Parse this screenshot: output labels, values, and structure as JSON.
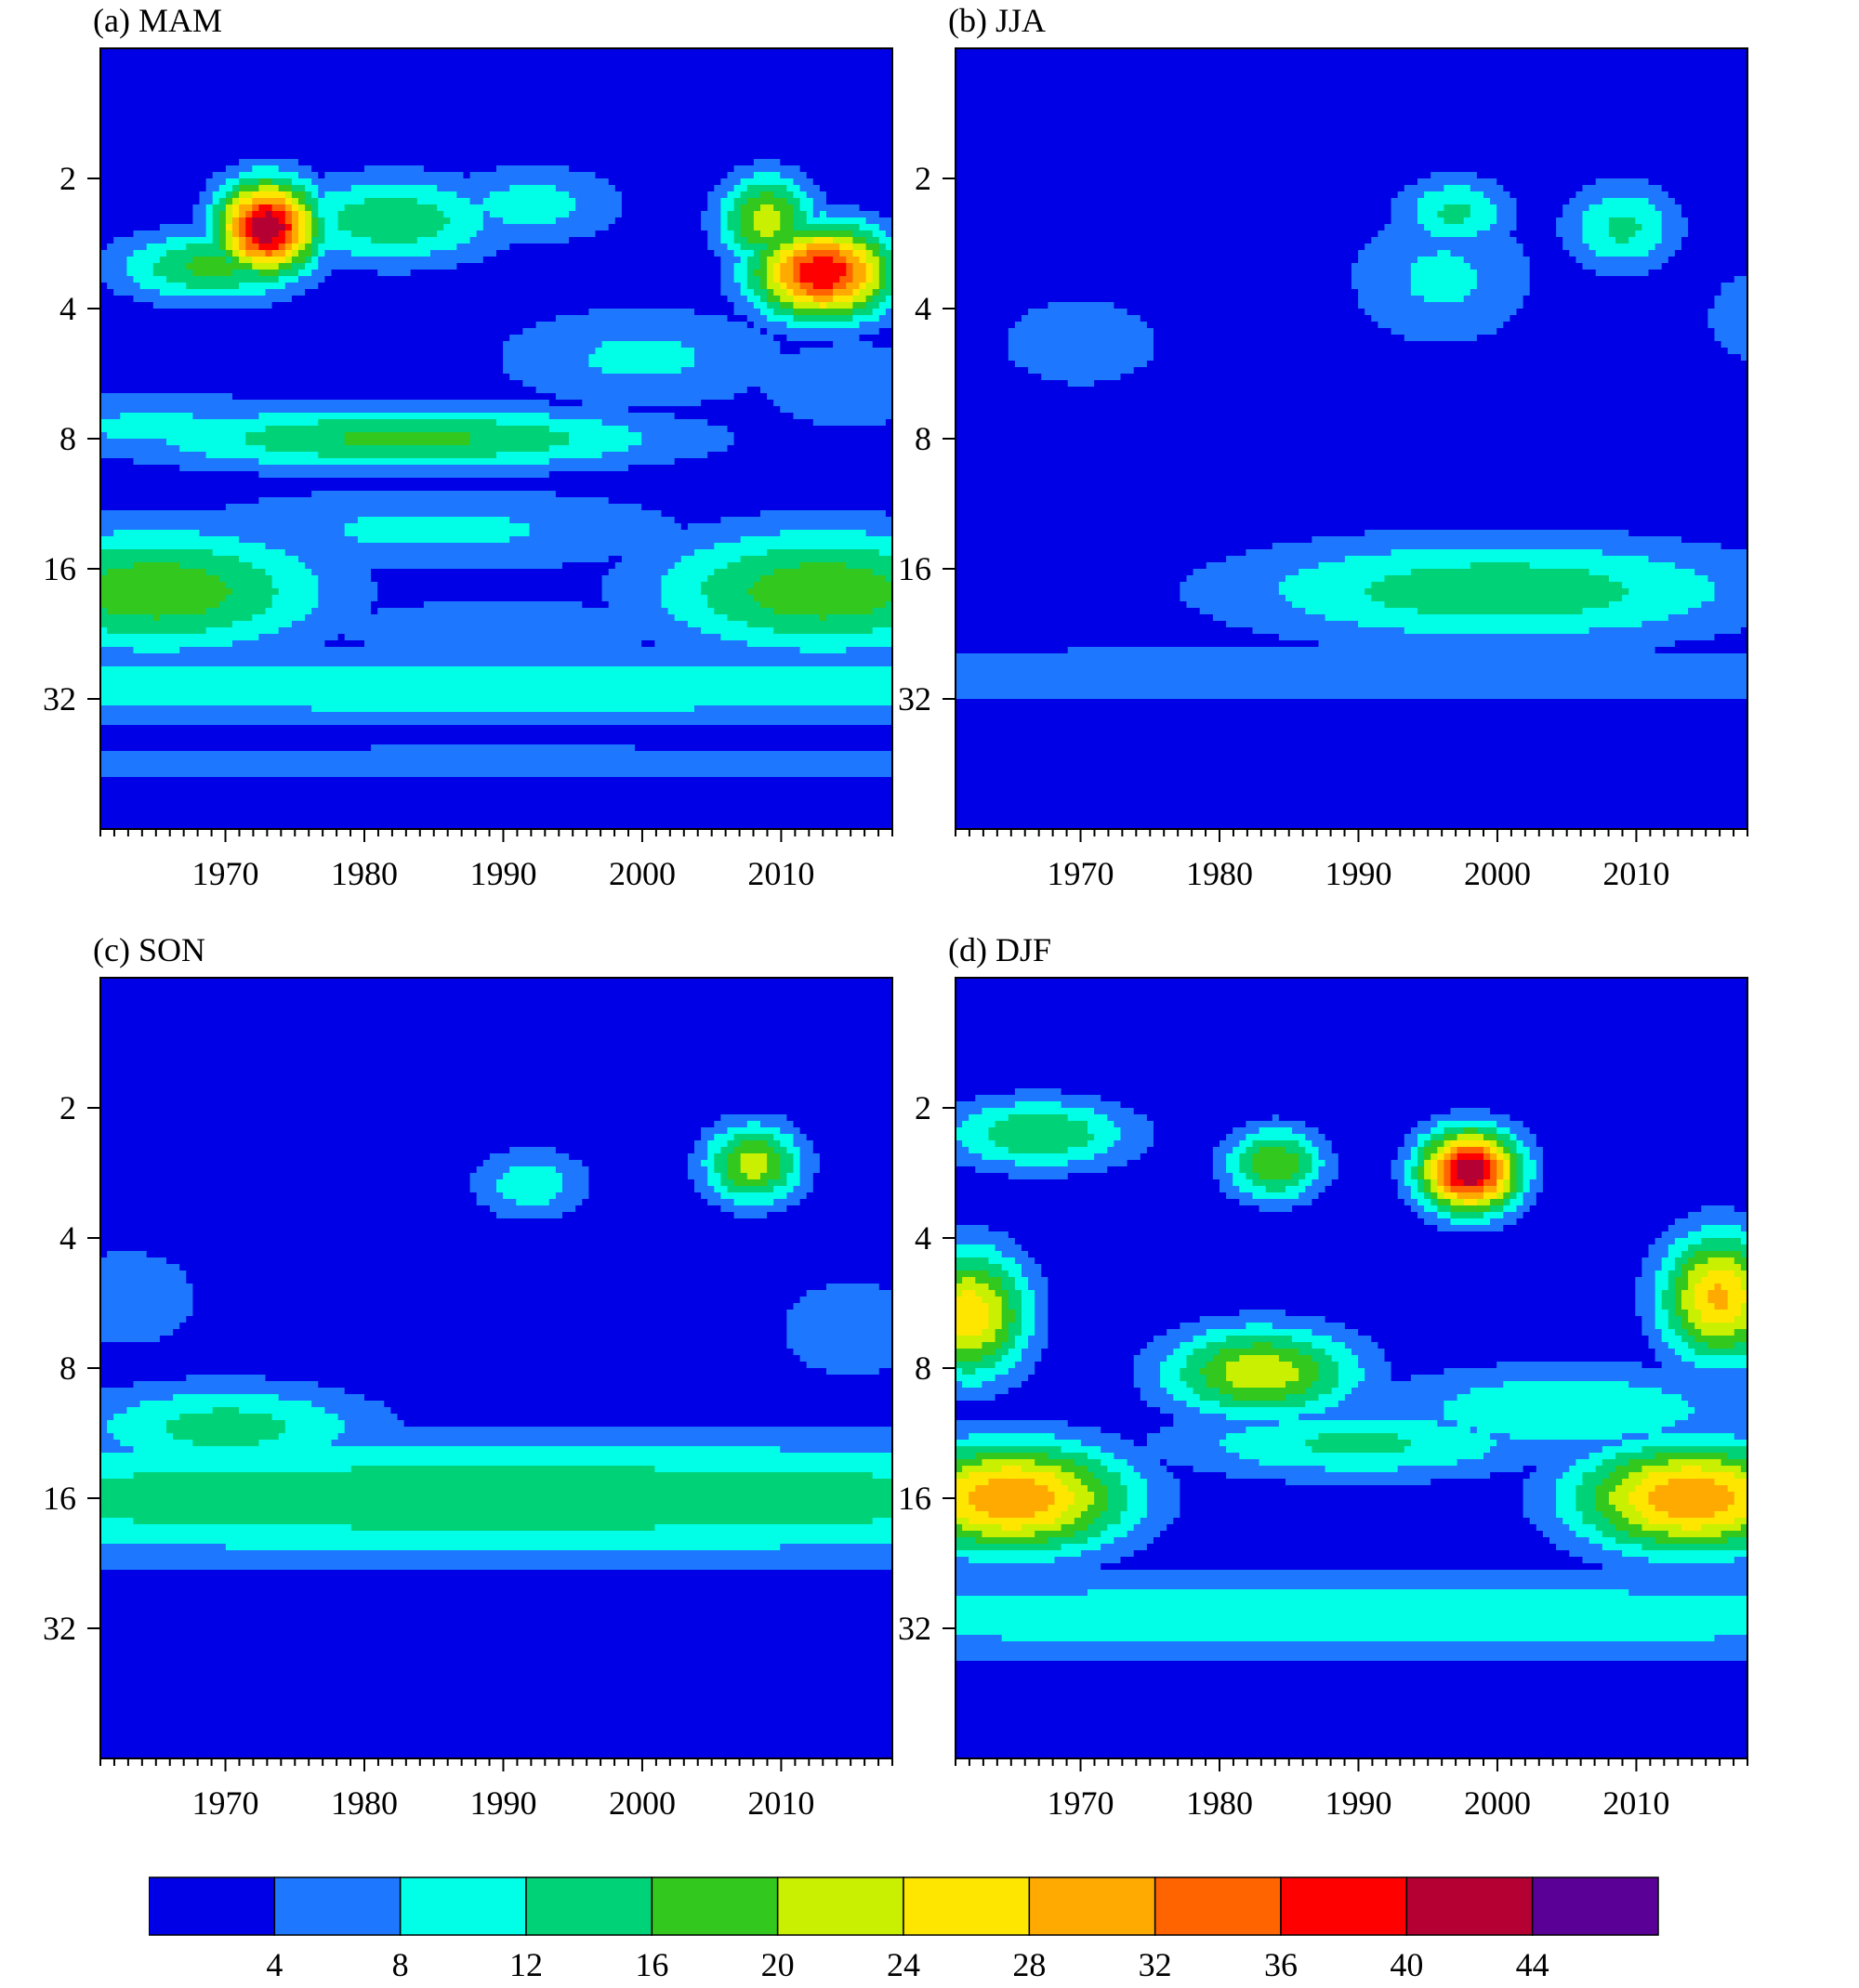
{
  "chart_data": [
    {
      "type": "heatmap",
      "title": "(a) MAM",
      "x_ticks": [
        1970,
        1980,
        1990,
        2000,
        2010
      ],
      "xlim": [
        1961,
        2018
      ],
      "y_ticks": [
        2,
        4,
        8,
        16,
        32
      ],
      "ylim": [
        1,
        64
      ],
      "y_scale": "log2",
      "background": "#0000e6",
      "blobs": [
        {
          "x": 1990,
          "y": 45,
          "sx": 60,
          "sy": 0.18,
          "v": 5
        },
        {
          "x": 1990,
          "y": 30,
          "sx": 60,
          "sy": 0.22,
          "v": 11
        },
        {
          "x": 1990,
          "y": 22,
          "sx": 10,
          "sy": 0.18,
          "v": 8
        },
        {
          "x": 1965,
          "y": 18,
          "sx": 9,
          "sy": 0.35,
          "v": 19
        },
        {
          "x": 2013,
          "y": 18,
          "sx": 9,
          "sy": 0.35,
          "v": 19
        },
        {
          "x": 1985,
          "y": 13,
          "sx": 14,
          "sy": 0.25,
          "v": 9
        },
        {
          "x": 1983,
          "y": 8,
          "sx": 14,
          "sy": 0.18,
          "v": 17
        },
        {
          "x": 1965,
          "y": 7.5,
          "sx": 10,
          "sy": 0.2,
          "v": 9
        },
        {
          "x": 2000,
          "y": 5.2,
          "sx": 8,
          "sy": 0.3,
          "v": 9
        },
        {
          "x": 2015,
          "y": 6,
          "sx": 6,
          "sy": 0.3,
          "v": 7
        },
        {
          "x": 1973,
          "y": 2.6,
          "sx": 2.5,
          "sy": 0.25,
          "v": 44
        },
        {
          "x": 1969,
          "y": 3.2,
          "sx": 5,
          "sy": 0.2,
          "v": 17
        },
        {
          "x": 1982,
          "y": 2.5,
          "sx": 6,
          "sy": 0.25,
          "v": 15
        },
        {
          "x": 1992,
          "y": 2.3,
          "sx": 5,
          "sy": 0.22,
          "v": 10
        },
        {
          "x": 2013,
          "y": 3.3,
          "sx": 3.5,
          "sy": 0.25,
          "v": 40
        },
        {
          "x": 2009,
          "y": 2.5,
          "sx": 2.5,
          "sy": 0.25,
          "v": 22
        }
      ]
    },
    {
      "type": "heatmap",
      "title": "(b) JJA",
      "x_ticks": [
        1970,
        1980,
        1990,
        2000,
        2010
      ],
      "xlim": [
        1961,
        2018
      ],
      "y_ticks": [
        2,
        4,
        8,
        16,
        32
      ],
      "ylim": [
        1,
        64
      ],
      "y_scale": "log2",
      "background": "#0000e6",
      "blobs": [
        {
          "x": 1990,
          "y": 28,
          "sx": 60,
          "sy": 0.22,
          "v": 6
        },
        {
          "x": 2000,
          "y": 18,
          "sx": 14,
          "sy": 0.3,
          "v": 15
        },
        {
          "x": 1970,
          "y": 4.8,
          "sx": 6,
          "sy": 0.35,
          "v": 6
        },
        {
          "x": 1996,
          "y": 3.4,
          "sx": 5,
          "sy": 0.4,
          "v": 9
        },
        {
          "x": 1997,
          "y": 2.4,
          "sx": 3,
          "sy": 0.2,
          "v": 13
        },
        {
          "x": 2009,
          "y": 2.6,
          "sx": 3,
          "sy": 0.25,
          "v": 13
        },
        {
          "x": 2018,
          "y": 4.2,
          "sx": 3,
          "sy": 0.35,
          "v": 6
        }
      ]
    },
    {
      "type": "heatmap",
      "title": "(c) SON",
      "x_ticks": [
        1970,
        1980,
        1990,
        2000,
        2010
      ],
      "xlim": [
        1961,
        2018
      ],
      "y_ticks": [
        2,
        4,
        8,
        16,
        32
      ],
      "ylim": [
        1,
        64
      ],
      "y_scale": "log2",
      "background": "#0000e6",
      "blobs": [
        {
          "x": 1990,
          "y": 16,
          "sx": 60,
          "sy": 0.35,
          "v": 15
        },
        {
          "x": 1970,
          "y": 11,
          "sx": 8,
          "sy": 0.25,
          "v": 14
        },
        {
          "x": 1985,
          "y": 16.5,
          "sx": 10,
          "sy": 0.15,
          "v": 4
        },
        {
          "x": 1992,
          "y": 3,
          "sx": 3,
          "sy": 0.2,
          "v": 11
        },
        {
          "x": 2008,
          "y": 2.7,
          "sx": 2.5,
          "sy": 0.22,
          "v": 22
        },
        {
          "x": 1963,
          "y": 5.5,
          "sx": 4,
          "sy": 0.3,
          "v": 8
        },
        {
          "x": 2015,
          "y": 6.5,
          "sx": 4,
          "sy": 0.3,
          "v": 8
        }
      ]
    },
    {
      "type": "heatmap",
      "title": "(d) DJF",
      "x_ticks": [
        1970,
        1980,
        1990,
        2000,
        2010
      ],
      "xlim": [
        1961,
        2018
      ],
      "y_ticks": [
        2,
        4,
        8,
        16,
        32
      ],
      "ylim": [
        1,
        64
      ],
      "y_scale": "log2",
      "background": "#0000e6",
      "blobs": [
        {
          "x": 1990,
          "y": 30,
          "sx": 60,
          "sy": 0.25,
          "v": 11
        },
        {
          "x": 1965,
          "y": 16,
          "sx": 6,
          "sy": 0.3,
          "v": 32
        },
        {
          "x": 2014,
          "y": 16,
          "sx": 6,
          "sy": 0.3,
          "v": 32
        },
        {
          "x": 1983,
          "y": 8.2,
          "sx": 5,
          "sy": 0.25,
          "v": 23
        },
        {
          "x": 1962,
          "y": 6,
          "sx": 3,
          "sy": 0.35,
          "v": 27
        },
        {
          "x": 2016,
          "y": 5.5,
          "sx": 3,
          "sy": 0.35,
          "v": 29
        },
        {
          "x": 1998,
          "y": 2.8,
          "sx": 2.5,
          "sy": 0.22,
          "v": 44
        },
        {
          "x": 1984,
          "y": 2.7,
          "sx": 2.5,
          "sy": 0.2,
          "v": 20
        },
        {
          "x": 1967,
          "y": 2.3,
          "sx": 5,
          "sy": 0.2,
          "v": 16
        },
        {
          "x": 1990,
          "y": 12,
          "sx": 10,
          "sy": 0.2,
          "v": 13
        },
        {
          "x": 2005,
          "y": 10,
          "sx": 10,
          "sy": 0.25,
          "v": 12
        }
      ]
    }
  ],
  "colorbar": {
    "colors": [
      "#0000e6",
      "#1e78ff",
      "#00ffe6",
      "#00d278",
      "#32c81e",
      "#c8f000",
      "#ffe600",
      "#ffaa00",
      "#ff6400",
      "#ff0000",
      "#b40032",
      "#5a0096"
    ],
    "labels": [
      "4",
      "8",
      "12",
      "16",
      "20",
      "24",
      "28",
      "32",
      "36",
      "40",
      "44"
    ]
  }
}
